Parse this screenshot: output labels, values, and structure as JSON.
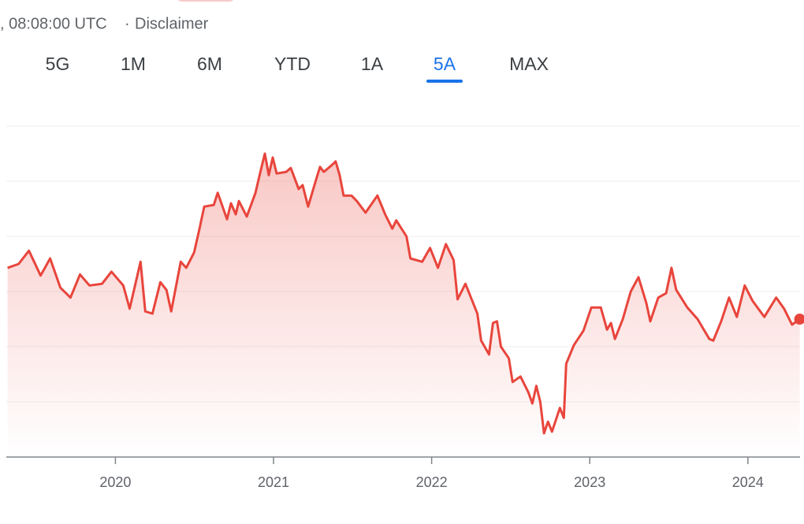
{
  "header": {
    "timestamp": ", 08:08:00 UTC",
    "separator": "·",
    "disclaimer": "Disclaimer"
  },
  "tabs": [
    "5G",
    "1M",
    "6M",
    "YTD",
    "1A",
    "5A",
    "MAX"
  ],
  "active_tab": 5,
  "chart_data": {
    "type": "line",
    "x": [
      2019.318,
      2019.388,
      2019.453,
      2019.527,
      2019.587,
      2019.652,
      2019.716,
      2019.776,
      2019.836,
      2019.915,
      2019.975,
      2020.05,
      2020.09,
      2020.159,
      2020.189,
      2020.234,
      2020.284,
      2020.323,
      2020.353,
      2020.413,
      2020.448,
      2020.498,
      2020.532,
      2020.562,
      2020.622,
      2020.647,
      2020.706,
      2020.731,
      2020.761,
      2020.781,
      2020.831,
      2020.886,
      2020.92,
      2020.945,
      2020.97,
      2020.995,
      2021.02,
      2021.08,
      2021.109,
      2021.159,
      2021.184,
      2021.219,
      2021.269,
      2021.294,
      2021.318,
      2021.368,
      2021.393,
      2021.418,
      2021.443,
      2021.493,
      2021.527,
      2021.582,
      2021.657,
      2021.706,
      2021.751,
      2021.776,
      2021.841,
      2021.866,
      2021.94,
      2021.99,
      2022.04,
      2022.09,
      2022.139,
      2022.164,
      2022.214,
      2022.289,
      2022.313,
      2022.363,
      2022.388,
      2022.413,
      2022.438,
      2022.488,
      2022.512,
      2022.562,
      2022.612,
      2022.637,
      2022.662,
      2022.687,
      2022.711,
      2022.736,
      2022.761,
      2022.811,
      2022.836,
      2022.851,
      2022.9,
      2022.96,
      2023.01,
      2023.07,
      2023.109,
      2023.134,
      2023.159,
      2023.209,
      2023.259,
      2023.308,
      2023.358,
      2023.383,
      2023.433,
      2023.483,
      2023.517,
      2023.547,
      2023.617,
      2023.682,
      2023.756,
      2023.781,
      2023.831,
      2023.881,
      2023.93,
      2023.98,
      2024.03,
      2024.104,
      2024.179,
      2024.229,
      2024.279,
      2024.328
    ],
    "series": [
      {
        "color": "#e8453c",
        "values": [
          3.43,
          3.5,
          3.74,
          3.29,
          3.6,
          3.07,
          2.89,
          3.31,
          3.11,
          3.14,
          3.36,
          3.11,
          2.69,
          3.54,
          2.64,
          2.6,
          3.17,
          3.03,
          2.64,
          3.54,
          3.43,
          3.71,
          4.14,
          4.54,
          4.57,
          4.79,
          4.31,
          4.6,
          4.4,
          4.64,
          4.36,
          4.79,
          5.21,
          5.5,
          5.11,
          5.43,
          5.14,
          5.17,
          5.24,
          4.86,
          4.93,
          4.54,
          5.03,
          5.26,
          5.17,
          5.29,
          5.36,
          5.11,
          4.74,
          4.74,
          4.64,
          4.43,
          4.74,
          4.4,
          4.14,
          4.29,
          4.0,
          3.6,
          3.54,
          3.79,
          3.43,
          3.86,
          3.57,
          2.86,
          3.14,
          2.6,
          2.11,
          1.86,
          2.43,
          2.46,
          2.0,
          1.79,
          1.36,
          1.46,
          1.17,
          0.97,
          1.29,
          1.0,
          0.43,
          0.64,
          0.46,
          0.89,
          0.71,
          1.69,
          2.03,
          2.29,
          2.71,
          2.71,
          2.31,
          2.43,
          2.14,
          2.5,
          3.0,
          3.26,
          2.79,
          2.46,
          2.89,
          2.97,
          3.43,
          3.03,
          2.71,
          2.5,
          2.14,
          2.11,
          2.46,
          2.89,
          2.54,
          3.11,
          2.83,
          2.54,
          2.89,
          2.69,
          2.4,
          2.5
        ]
      }
    ],
    "xlim": [
      2019.31,
      2024.33
    ],
    "xticks": [
      2020,
      2021,
      2022,
      2023,
      2024
    ],
    "ylim": [
      0,
      6
    ],
    "gridlines": [
      1,
      2,
      3,
      4,
      5,
      6
    ]
  }
}
